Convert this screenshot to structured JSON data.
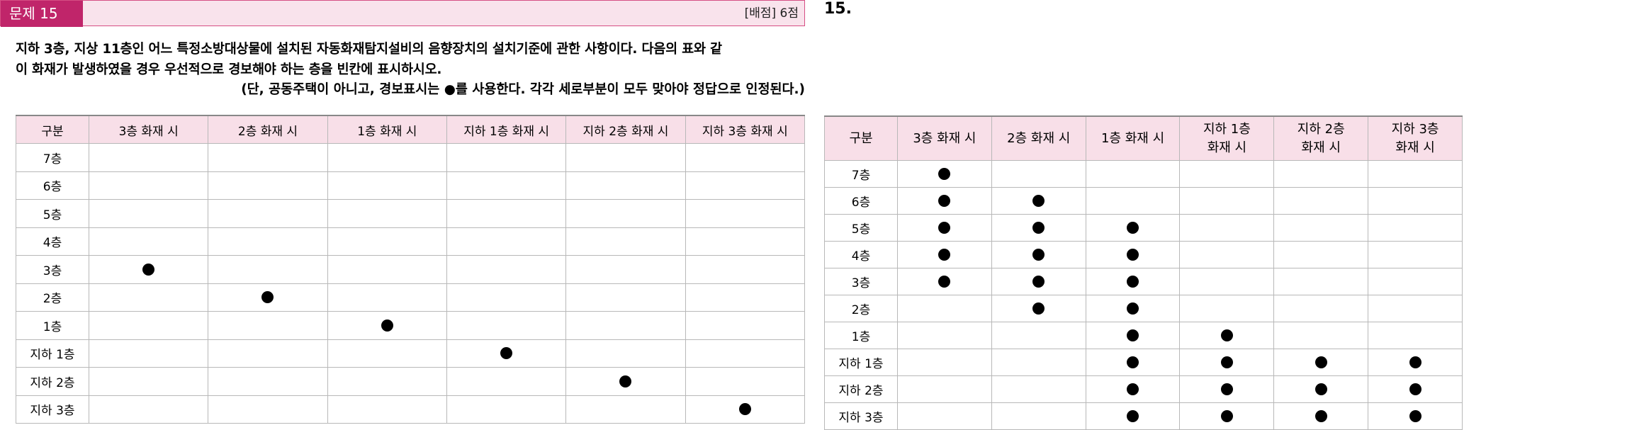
{
  "problem": {
    "badge": "문제 15",
    "points": "[배점] 6점",
    "question_line1": "지하 3층, 지상 11층인 어느 특정소방대상물에 설치된 자동화재탐지설비의 음향장치의 설치기준에 관한 사항이다. 다음의 표와 같",
    "question_line2": "이 화재가 발생하였을 경우 우선적으로 경보해야 하는 층을 빈칸에 표시하시오.",
    "note": "(단, 공동주택이 아니고, 경보표시는 ●를 사용한다. 각각 세로부분이 모두 맞아야 정답으로 인정된다.)"
  },
  "left_table": {
    "header_label": "구분",
    "columns": [
      "3층 화재 시",
      "2층 화재 시",
      "1층 화재 시",
      "지하 1층 화재 시",
      "지하 2층 화재 시",
      "지하 3층 화재 시"
    ],
    "rows": [
      {
        "floor": "7층",
        "marks": [
          0,
          0,
          0,
          0,
          0,
          0
        ]
      },
      {
        "floor": "6층",
        "marks": [
          0,
          0,
          0,
          0,
          0,
          0
        ]
      },
      {
        "floor": "5층",
        "marks": [
          0,
          0,
          0,
          0,
          0,
          0
        ]
      },
      {
        "floor": "4층",
        "marks": [
          0,
          0,
          0,
          0,
          0,
          0
        ]
      },
      {
        "floor": "3층",
        "marks": [
          1,
          0,
          0,
          0,
          0,
          0
        ]
      },
      {
        "floor": "2층",
        "marks": [
          0,
          1,
          0,
          0,
          0,
          0
        ]
      },
      {
        "floor": "1층",
        "marks": [
          0,
          0,
          1,
          0,
          0,
          0
        ]
      },
      {
        "floor": "지하 1층",
        "marks": [
          0,
          0,
          0,
          1,
          0,
          0
        ]
      },
      {
        "floor": "지하 2층",
        "marks": [
          0,
          0,
          0,
          0,
          1,
          0
        ]
      },
      {
        "floor": "지하 3층",
        "marks": [
          0,
          0,
          0,
          0,
          0,
          1
        ]
      }
    ]
  },
  "answer": {
    "title": "15.",
    "header_label": "구분",
    "columns": [
      "3층 화재 시",
      "2층 화재 시",
      "1층 화재 시",
      "지하 1층\n화재 시",
      "지하 2층\n화재 시",
      "지하 3층\n화재 시"
    ],
    "rows": [
      {
        "floor": "7층",
        "marks": [
          1,
          0,
          0,
          0,
          0,
          0
        ]
      },
      {
        "floor": "6층",
        "marks": [
          1,
          1,
          0,
          0,
          0,
          0
        ]
      },
      {
        "floor": "5층",
        "marks": [
          1,
          1,
          1,
          0,
          0,
          0
        ]
      },
      {
        "floor": "4층",
        "marks": [
          1,
          1,
          1,
          0,
          0,
          0
        ]
      },
      {
        "floor": "3층",
        "marks": [
          1,
          1,
          1,
          0,
          0,
          0
        ]
      },
      {
        "floor": "2층",
        "marks": [
          0,
          1,
          1,
          0,
          0,
          0
        ]
      },
      {
        "floor": "1층",
        "marks": [
          0,
          0,
          1,
          1,
          0,
          0
        ]
      },
      {
        "floor": "지하 1층",
        "marks": [
          0,
          0,
          1,
          1,
          1,
          1
        ]
      },
      {
        "floor": "지하 2층",
        "marks": [
          0,
          0,
          1,
          1,
          1,
          1
        ]
      },
      {
        "floor": "지하 3층",
        "marks": [
          0,
          0,
          1,
          1,
          1,
          1
        ]
      }
    ]
  },
  "mark_symbol": "dot-icon",
  "colors": {
    "badge_bg": "#c0256a",
    "header_bg": "#f9e3ec",
    "th_bg": "#f8dfe8"
  }
}
